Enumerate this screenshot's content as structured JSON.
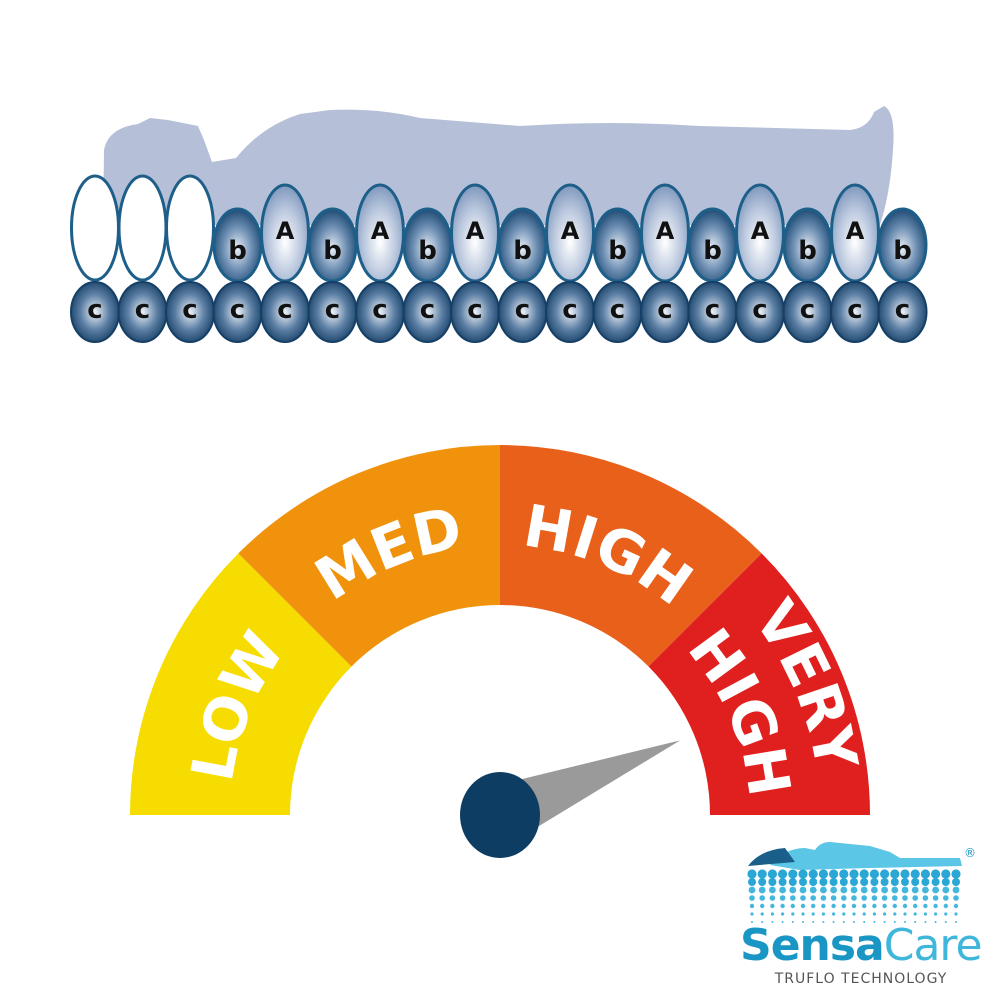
{
  "mattress": {
    "top_row": [
      "",
      "",
      "",
      "b",
      "A",
      "b",
      "A",
      "b",
      "A",
      "b",
      "A",
      "b",
      "A",
      "b",
      "A",
      "b",
      "A",
      "b"
    ],
    "bottom_row": [
      "c",
      "c",
      "c",
      "c",
      "c",
      "c",
      "c",
      "c",
      "c",
      "c",
      "c",
      "c",
      "c",
      "c",
      "c",
      "c",
      "c",
      "c"
    ],
    "colors": {
      "silhouette": "#b5c0d8",
      "cell_dark": "#17456f",
      "cell_outline": "#1e5f8a"
    }
  },
  "gauge": {
    "segments": [
      {
        "label": "LOW",
        "color": "#f6dc00"
      },
      {
        "label": "MED",
        "color": "#f0920c"
      },
      {
        "label": "HIGH",
        "color": "#e8601a"
      },
      {
        "label_line1": "VERY",
        "label_line2": "HIGH",
        "color": "#e0201e"
      }
    ],
    "needle_fraction": 0.875,
    "needle_color": "#9a9a9a",
    "hub_color": "#0d3d63"
  },
  "logo": {
    "brand_part1": "Sensa",
    "brand_part2": "Care",
    "tagline": "TRUFLO TECHNOLOGY",
    "registered": "®",
    "colors": {
      "dark": "#1a96c4",
      "light": "#3fb6da",
      "tagline": "#555555"
    }
  }
}
